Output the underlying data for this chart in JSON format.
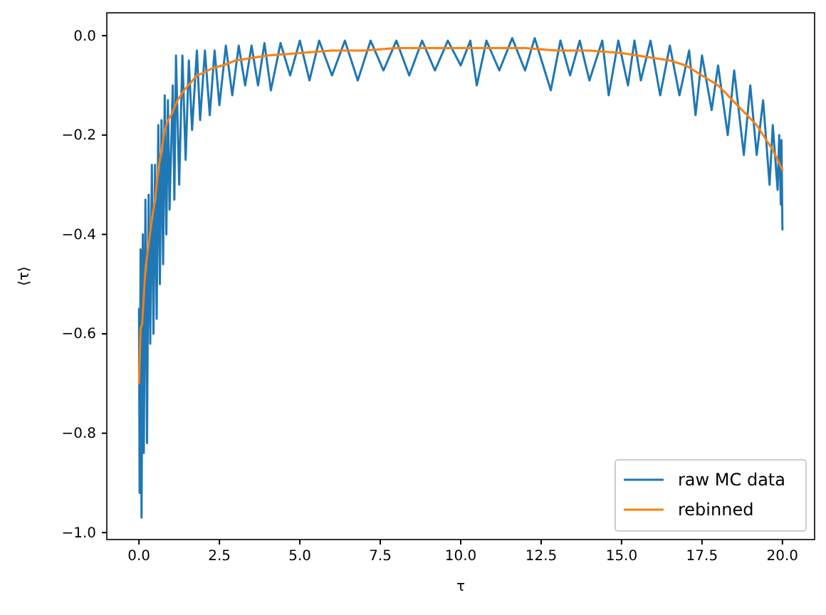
{
  "chart_data": {
    "type": "line",
    "xlabel": "τ",
    "ylabel": "⟨τ⟩",
    "xlim": [
      -1,
      21
    ],
    "ylim": [
      -1.014,
      0.046
    ],
    "xticks": [
      {
        "value": 0,
        "label": "0.0"
      },
      2.5,
      {
        "value": 5,
        "label": "5.0"
      },
      7.5,
      {
        "value": 10,
        "label": "10.0"
      },
      12.5,
      {
        "value": 15,
        "label": "15.0"
      },
      17.5,
      {
        "value": 20,
        "label": "20.0"
      }
    ],
    "yticks": [
      {
        "value": -1,
        "label": "−1.0"
      },
      {
        "value": -0.8,
        "label": "−0.8"
      },
      {
        "value": -0.6,
        "label": "−0.6"
      },
      {
        "value": -0.4,
        "label": "−0.4"
      },
      {
        "value": -0.2,
        "label": "−0.2"
      },
      {
        "value": 0,
        "label": "0.0"
      }
    ],
    "legend": "bottom right",
    "grid": false,
    "marker": "none",
    "line_style": "solid",
    "series": [
      {
        "name": "raw MC data",
        "color": "#1f77b4",
        "x": [
          0,
          0.02,
          0.05,
          0.08,
          0.12,
          0.15,
          0.2,
          0.25,
          0.3,
          0.35,
          0.4,
          0.45,
          0.5,
          0.55,
          0.6,
          0.65,
          0.7,
          0.75,
          0.8,
          0.85,
          0.9,
          0.95,
          1.05,
          1.1,
          1.15,
          1.25,
          1.35,
          1.45,
          1.55,
          1.65,
          1.8,
          1.9,
          2.05,
          2.2,
          2.35,
          2.5,
          2.7,
          2.9,
          3.1,
          3.3,
          3.5,
          3.7,
          3.9,
          4.1,
          4.4,
          4.7,
          5,
          5.3,
          5.6,
          6,
          6.4,
          6.8,
          7.2,
          7.6,
          8,
          8.4,
          8.8,
          9.2,
          9.6,
          10,
          10.3,
          10.5,
          10.8,
          11.2,
          11.6,
          12,
          12.3,
          12.8,
          13.1,
          13.4,
          13.7,
          14,
          14.4,
          14.6,
          14.9,
          15.2,
          15.4,
          15.6,
          15.9,
          16.2,
          16.5,
          16.8,
          17.1,
          17.3,
          17.5,
          17.8,
          18,
          18.3,
          18.5,
          18.8,
          19,
          19.2,
          19.4,
          19.6,
          19.7,
          19.85,
          19.9,
          19.95,
          19.97,
          20
        ],
        "values": [
          -0.55,
          -0.92,
          -0.43,
          -0.97,
          -0.4,
          -0.84,
          -0.33,
          -0.82,
          -0.32,
          -0.62,
          -0.26,
          -0.6,
          -0.26,
          -0.57,
          -0.18,
          -0.5,
          -0.17,
          -0.46,
          -0.12,
          -0.4,
          -0.13,
          -0.35,
          -0.1,
          -0.33,
          -0.04,
          -0.3,
          -0.04,
          -0.25,
          -0.05,
          -0.19,
          -0.03,
          -0.17,
          -0.03,
          -0.16,
          -0.03,
          -0.14,
          -0.02,
          -0.12,
          -0.02,
          -0.1,
          -0.02,
          -0.1,
          -0.015,
          -0.11,
          -0.015,
          -0.08,
          -0.01,
          -0.09,
          -0.01,
          -0.08,
          -0.01,
          -0.09,
          -0.01,
          -0.07,
          -0.01,
          -0.08,
          -0.01,
          -0.07,
          -0.01,
          -0.06,
          -0.01,
          -0.1,
          -0.01,
          -0.07,
          -0.005,
          -0.07,
          -0.005,
          -0.11,
          -0.01,
          -0.08,
          -0.01,
          -0.09,
          -0.01,
          -0.12,
          -0.01,
          -0.1,
          -0.01,
          -0.09,
          -0.01,
          -0.12,
          -0.02,
          -0.12,
          -0.03,
          -0.16,
          -0.04,
          -0.15,
          -0.06,
          -0.2,
          -0.07,
          -0.24,
          -0.1,
          -0.24,
          -0.13,
          -0.3,
          -0.18,
          -0.31,
          -0.2,
          -0.34,
          -0.21,
          -0.39
        ]
      },
      {
        "name": "rebinned",
        "color": "#ff7f0e",
        "x": [
          0,
          0.05,
          0.1,
          0.2,
          0.3,
          0.4,
          0.5,
          0.6,
          0.7,
          0.8,
          0.9,
          1,
          1.2,
          1.4,
          1.6,
          1.8,
          2,
          2.3,
          2.6,
          3,
          3.5,
          4,
          5,
          6,
          7,
          8,
          9,
          10,
          11,
          12,
          13,
          14,
          15,
          15.5,
          16,
          16.5,
          17,
          17.5,
          18,
          18.3,
          18.6,
          18.9,
          19.2,
          19.5,
          19.7,
          19.85,
          20
        ],
        "values": [
          -0.7,
          -0.59,
          -0.58,
          -0.47,
          -0.42,
          -0.37,
          -0.33,
          -0.27,
          -0.23,
          -0.19,
          -0.17,
          -0.16,
          -0.13,
          -0.11,
          -0.095,
          -0.08,
          -0.075,
          -0.065,
          -0.06,
          -0.05,
          -0.045,
          -0.04,
          -0.035,
          -0.03,
          -0.03,
          -0.025,
          -0.025,
          -0.025,
          -0.025,
          -0.025,
          -0.03,
          -0.03,
          -0.035,
          -0.04,
          -0.045,
          -0.05,
          -0.06,
          -0.08,
          -0.1,
          -0.12,
          -0.14,
          -0.16,
          -0.18,
          -0.21,
          -0.23,
          -0.25,
          -0.27
        ]
      }
    ]
  }
}
